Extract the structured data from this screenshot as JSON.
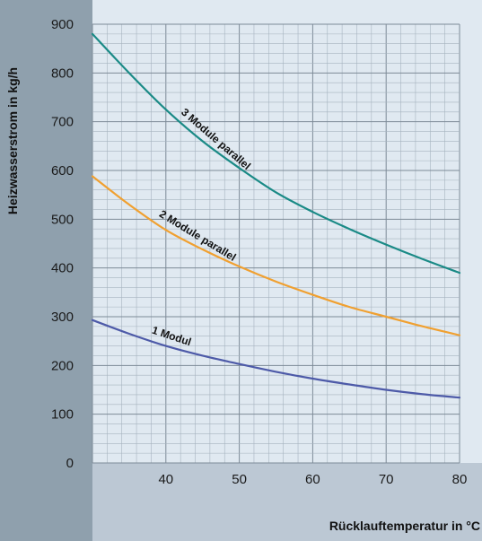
{
  "chart_data": {
    "type": "line",
    "xlabel": "Rücklauftemperatur in °C",
    "ylabel": "Heizwasserstrom in kg/h",
    "xlim": [
      30,
      80
    ],
    "ylim": [
      0,
      900
    ],
    "x_ticks": [
      40,
      50,
      60,
      70,
      80
    ],
    "y_ticks": [
      0,
      100,
      200,
      300,
      400,
      500,
      600,
      700,
      800,
      900
    ],
    "grid": true,
    "series": [
      {
        "name": "3 Module parallel",
        "color": "#1a8a86",
        "x": [
          30,
          35,
          40,
          45,
          50,
          55,
          60,
          65,
          70,
          75,
          80
        ],
        "y": [
          880,
          800,
          725,
          660,
          605,
          555,
          515,
          480,
          448,
          418,
          390
        ]
      },
      {
        "name": "2 Module parallel",
        "color": "#f0a030",
        "x": [
          30,
          35,
          40,
          45,
          50,
          55,
          60,
          65,
          70,
          75,
          80
        ],
        "y": [
          588,
          530,
          478,
          438,
          403,
          372,
          345,
          320,
          300,
          280,
          262
        ]
      },
      {
        "name": "1 Modul",
        "color": "#4d5aa8",
        "x": [
          30,
          35,
          40,
          45,
          50,
          55,
          60,
          65,
          70,
          75,
          80
        ],
        "y": [
          293,
          265,
          240,
          220,
          203,
          187,
          173,
          161,
          150,
          141,
          134
        ]
      }
    ]
  }
}
